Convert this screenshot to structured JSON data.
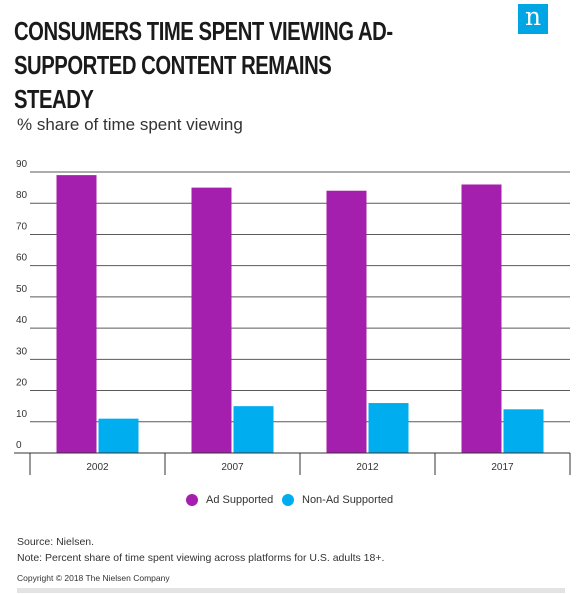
{
  "header": {
    "title": "CONSUMERS TIME SPENT VIEWING AD-SUPPORTED CONTENT REMAINS STEADY",
    "logo_text": "n"
  },
  "chart_data": {
    "type": "bar",
    "subtitle": "% share of time spent viewing",
    "categories": [
      "2002",
      "2007",
      "2012",
      "2017"
    ],
    "series": [
      {
        "name": "Ad Supported",
        "color": "#a51fae",
        "values": [
          89,
          85,
          84,
          86
        ]
      },
      {
        "name": "Non-Ad Supported",
        "color": "#00aeef",
        "values": [
          11,
          15,
          16,
          14
        ]
      }
    ],
    "yticks": [
      0,
      10,
      20,
      30,
      40,
      50,
      60,
      70,
      80,
      90
    ],
    "ylim": [
      0,
      90
    ],
    "grid": true,
    "legend_position": "bottom-center"
  },
  "footer": {
    "source": "Source: Nielsen.",
    "note": "Note: Percent share of time spent viewing across platforms for U.S. adults 18+.",
    "copyright": "Copyright © 2018 The Nielsen Company"
  }
}
